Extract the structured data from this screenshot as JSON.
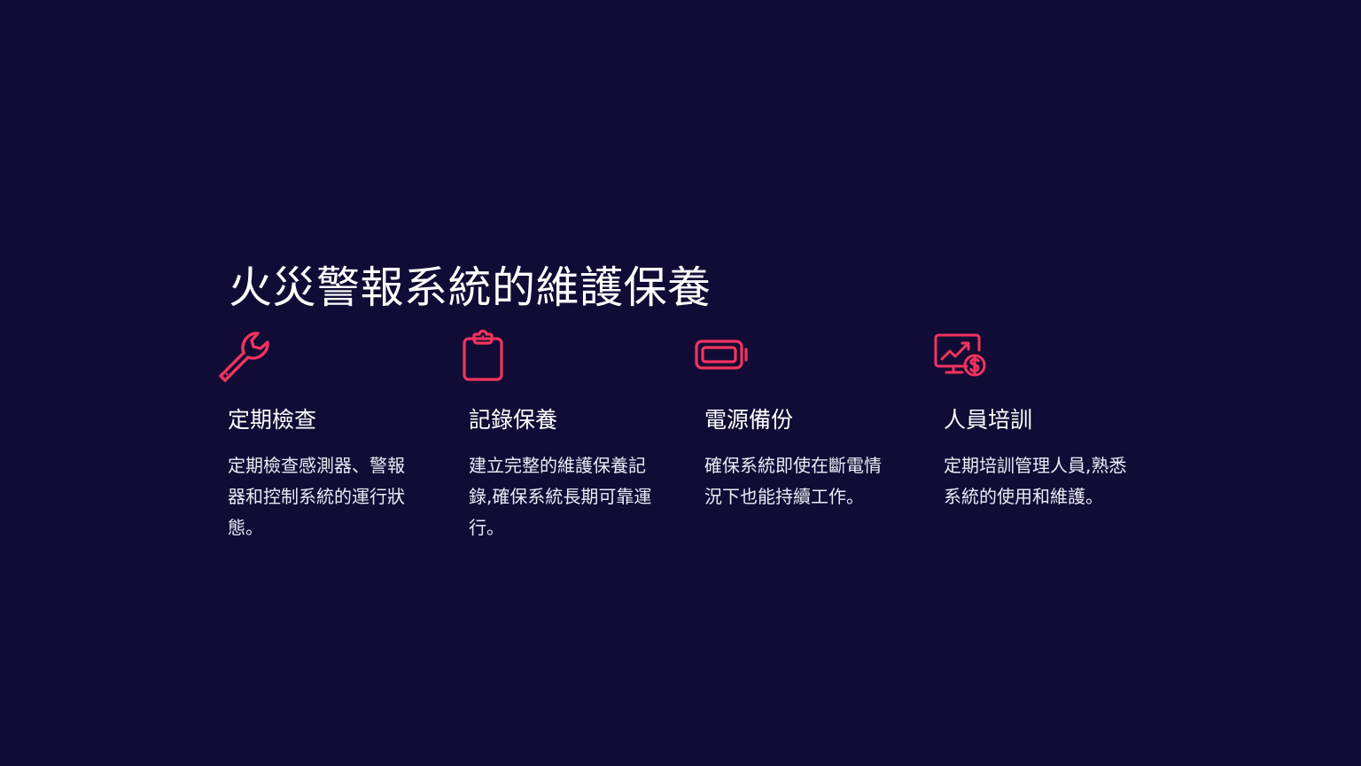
{
  "slide": {
    "title": "火災警報系統的維護保養",
    "accent_color": "#f2335f",
    "background_color": "#110c35",
    "features": [
      {
        "icon": "wrench-icon",
        "heading": "定期檢查",
        "description": "定期檢查感測器、警報器和控制系統的運行狀態。"
      },
      {
        "icon": "clipboard-icon",
        "heading": "記錄保養",
        "description": "建立完整的維護保養記錄,確保系統長期可靠運行。"
      },
      {
        "icon": "battery-icon",
        "heading": "電源備份",
        "description": "確保系統即使在斷電情況下也能持續工作。"
      },
      {
        "icon": "monitor-dollar-icon",
        "heading": "人員培訓",
        "description": "定期培訓管理人員,熟悉系統的使用和維護。"
      }
    ]
  }
}
